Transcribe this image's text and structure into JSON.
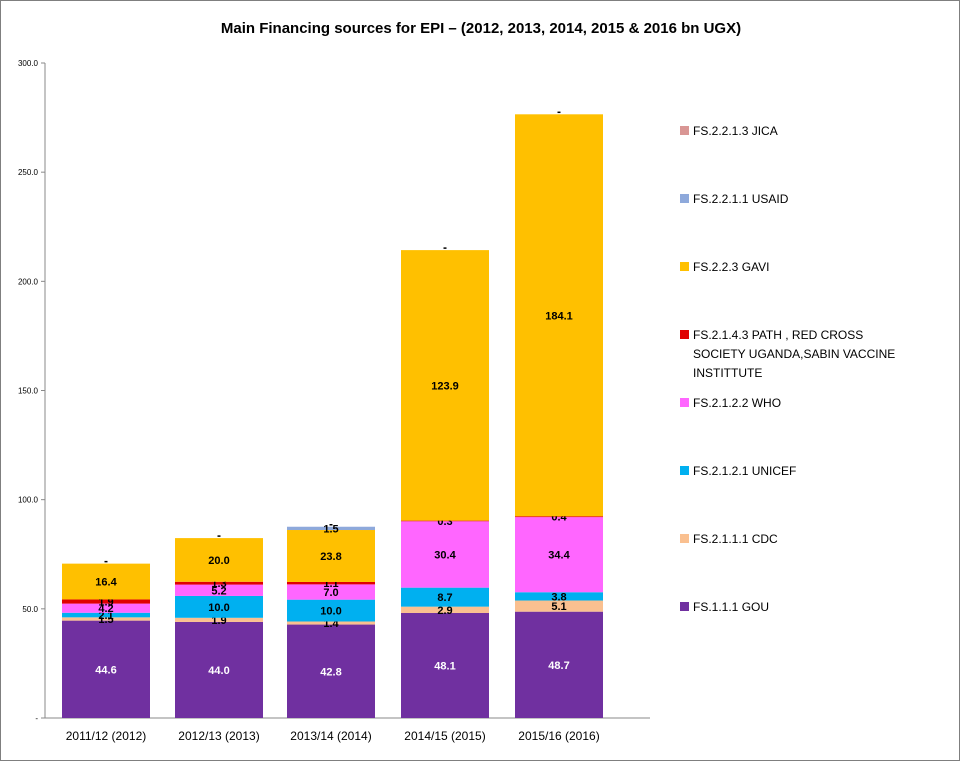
{
  "chart_data": {
    "type": "bar",
    "stacked": true,
    "title": "Main Financing sources for EPI – (2012, 2013, 2014, 2015 & 2016  bn UGX)",
    "xlabel": "",
    "ylabel": "",
    "ylim": [
      0,
      300
    ],
    "yticks": [
      {
        "value": 0,
        "label": "-"
      },
      {
        "value": 50,
        "label": "50.0"
      },
      {
        "value": 100,
        "label": "100.0"
      },
      {
        "value": 150,
        "label": "150.0"
      },
      {
        "value": 200,
        "label": "200.0"
      },
      {
        "value": 250,
        "label": "250.0"
      },
      {
        "value": 300,
        "label": "300.0"
      }
    ],
    "grid": false,
    "legend_position": "right",
    "categories": [
      "2011/12 (2012)",
      "2012/13 (2013)",
      "2013/14 (2014)",
      "2014/15 (2015)",
      "2015/16 (2016)"
    ],
    "series": [
      {
        "name": "FS.1.1.1 GOU",
        "color": "#7030A0",
        "label_color": "#ffffff",
        "values": [
          44.6,
          44.0,
          42.8,
          48.1,
          48.7
        ],
        "labels": [
          "44.6",
          "44.0",
          "42.8",
          "48.1",
          "48.7"
        ]
      },
      {
        "name": "FS.2.1.1.1 CDC",
        "color": "#FAC090",
        "label_color": "#000000",
        "values": [
          1.5,
          1.9,
          1.4,
          2.9,
          5.1
        ],
        "labels": [
          "1.5",
          "1.9",
          "1.4",
          "2.9",
          "5.1"
        ]
      },
      {
        "name": "FS.2.1.2.1 UNICEF",
        "color": "#00B0F0",
        "label_color": "#000000",
        "values": [
          2.1,
          10.0,
          10.0,
          8.7,
          3.8
        ],
        "labels": [
          "2.1",
          "10.0",
          "10.0",
          "8.7",
          "3.8"
        ]
      },
      {
        "name": "FS.2.1.2.2 WHO",
        "color": "#FF66FF",
        "label_color": "#000000",
        "values": [
          4.2,
          5.2,
          7.0,
          30.4,
          34.4
        ],
        "labels": [
          "4.2",
          "5.2",
          "7.0",
          "30.4",
          "34.4"
        ]
      },
      {
        "name": "FS.2.1.4.3 PATH , RED CROSS SOCIETY UGANDA,SABIN VACCINE INSTITTUTE",
        "color": "#E00000",
        "label_color": "#000000",
        "values": [
          1.9,
          1.3,
          1.1,
          0.3,
          0.4
        ],
        "labels": [
          "1.9",
          "1.3",
          "1.1",
          "0.3",
          "0.4"
        ]
      },
      {
        "name": "FS.2.2.3 GAVI",
        "color": "#FFC000",
        "label_color": "#000000",
        "values": [
          16.4,
          20.0,
          23.8,
          123.9,
          184.1
        ],
        "labels": [
          "16.4",
          "20.0",
          "23.8",
          "123.9",
          "184.1"
        ]
      },
      {
        "name": "FS.2.2.1.1 USAID",
        "color": "#8EA9DB",
        "label_color": "#000000",
        "values": [
          0,
          0,
          1.5,
          0,
          0
        ],
        "labels": [
          "",
          "",
          "1.5",
          "",
          ""
        ]
      },
      {
        "name": "FS.2.2.1.3 JICA",
        "color": "#D99694",
        "label_color": "#000000",
        "values": [
          0,
          0,
          0,
          0,
          0
        ],
        "labels": [
          "",
          "",
          "",
          "",
          ""
        ]
      }
    ],
    "legend_order": [
      "FS.2.2.1.3 JICA",
      "FS.2.2.1.1 USAID",
      "FS.2.2.3 GAVI",
      "FS.2.1.4.3 PATH , RED CROSS SOCIETY UGANDA,SABIN VACCINE INSTITTUTE",
      "FS.2.1.2.2 WHO",
      "FS.2.1.2.1 UNICEF",
      "FS.2.1.1.1 CDC",
      "FS.1.1.1 GOU"
    ],
    "legend_lines": {
      "FS.2.1.4.3 PATH , RED CROSS SOCIETY UGANDA,SABIN VACCINE INSTITTUTE": [
        "FS.2.1.4.3 PATH , RED CROSS",
        "SOCIETY UGANDA,SABIN VACCINE",
        "INSTITTUTE"
      ]
    }
  }
}
